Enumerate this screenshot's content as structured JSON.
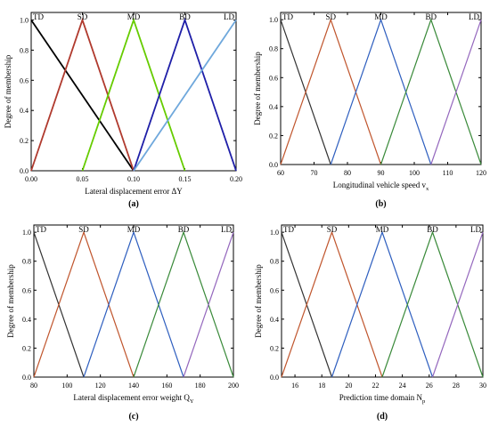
{
  "chart_data": [
    {
      "type": "line",
      "panel_label": "(a)",
      "xlabel": "Lateral displacement error ΔY",
      "ylabel": "Degree of membership",
      "xlim": [
        0,
        0.2
      ],
      "ylim": [
        0,
        1.05
      ],
      "xticks": [
        0.0,
        0.05,
        0.1,
        0.15,
        0.2
      ],
      "xtick_labels": [
        "0.00",
        "0.05",
        "0.10",
        "0.15",
        "0.20"
      ],
      "yticks": [
        0.0,
        0.2,
        0.4,
        0.6,
        0.8,
        1.0
      ],
      "ytick_labels": [
        "0.0",
        "0.2",
        "0.4",
        "0.6",
        "0.8",
        "1.0"
      ],
      "grid": false,
      "series": [
        {
          "name": "TD",
          "color": "#000000",
          "x": [
            0,
            0.1
          ],
          "y": [
            1,
            0
          ]
        },
        {
          "name": "SD",
          "color": "#b03a2e",
          "x": [
            0,
            0.05,
            0.1
          ],
          "y": [
            0,
            1,
            0
          ]
        },
        {
          "name": "MD",
          "color": "#66cc00",
          "x": [
            0.05,
            0.1,
            0.15
          ],
          "y": [
            0,
            1,
            0
          ]
        },
        {
          "name": "BD",
          "color": "#1f1fa8",
          "x": [
            0.1,
            0.15,
            0.2
          ],
          "y": [
            0,
            1,
            0
          ]
        },
        {
          "name": "LD",
          "color": "#6fa8dc",
          "x": [
            0.1,
            0.2
          ],
          "y": [
            0,
            1
          ]
        }
      ]
    },
    {
      "type": "line",
      "panel_label": "(b)",
      "xlabel": "Longitudinal vehicle speed  v",
      "xlabel_sub": "x",
      "ylabel": "Degree of membership",
      "xlim": [
        60,
        120
      ],
      "ylim": [
        0,
        1.05
      ],
      "xticks": [
        60,
        70,
        80,
        90,
        100,
        110,
        120
      ],
      "xtick_labels": [
        "60",
        "70",
        "80",
        "90",
        "100",
        "110",
        "120"
      ],
      "yticks": [
        0.0,
        0.2,
        0.4,
        0.6,
        0.8,
        1.0
      ],
      "ytick_labels": [
        "0.0",
        "0.2",
        "0.4",
        "0.6",
        "0.8",
        "1.0"
      ],
      "grid": false,
      "series": [
        {
          "name": "TD",
          "color": "#333333",
          "x": [
            60,
            75
          ],
          "y": [
            1,
            0
          ]
        },
        {
          "name": "SD",
          "color": "#c0562e",
          "x": [
            60,
            75,
            90
          ],
          "y": [
            0,
            1,
            0
          ]
        },
        {
          "name": "MD",
          "color": "#2f5fbf",
          "x": [
            75,
            90,
            105
          ],
          "y": [
            0,
            1,
            0
          ]
        },
        {
          "name": "BD",
          "color": "#3a8a3a",
          "x": [
            90,
            105,
            120
          ],
          "y": [
            0,
            1,
            0
          ]
        },
        {
          "name": "LD",
          "color": "#9467bd",
          "x": [
            105,
            120
          ],
          "y": [
            0,
            1
          ]
        }
      ]
    },
    {
      "type": "line",
      "panel_label": "(c)",
      "xlabel": "Lateral displacement error weight Q",
      "xlabel_sub": "Y",
      "ylabel": "Degree of membership",
      "xlim": [
        80,
        200
      ],
      "ylim": [
        0,
        1.05
      ],
      "xticks": [
        80,
        100,
        120,
        140,
        160,
        180,
        200
      ],
      "xtick_labels": [
        "80",
        "100",
        "120",
        "140",
        "160",
        "180",
        "200"
      ],
      "yticks": [
        0.0,
        0.2,
        0.4,
        0.6,
        0.8,
        1.0
      ],
      "ytick_labels": [
        "0.0",
        "0.2",
        "0.4",
        "0.6",
        "0.8",
        "1.0"
      ],
      "grid": false,
      "series": [
        {
          "name": "TD",
          "color": "#333333",
          "x": [
            80,
            110
          ],
          "y": [
            1,
            0
          ]
        },
        {
          "name": "SD",
          "color": "#c0562e",
          "x": [
            80,
            110,
            140
          ],
          "y": [
            0,
            1,
            0
          ]
        },
        {
          "name": "MD",
          "color": "#2f5fbf",
          "x": [
            110,
            140,
            170
          ],
          "y": [
            0,
            1,
            0
          ]
        },
        {
          "name": "BD",
          "color": "#3a8a3a",
          "x": [
            140,
            170,
            200
          ],
          "y": [
            0,
            1,
            0
          ]
        },
        {
          "name": "LD",
          "color": "#9467bd",
          "x": [
            170,
            200
          ],
          "y": [
            0,
            1
          ]
        }
      ]
    },
    {
      "type": "line",
      "panel_label": "(d)",
      "xlabel": "Prediction time domain N",
      "xlabel_sub": "p",
      "ylabel": "Degree of membership",
      "xlim": [
        15,
        30
      ],
      "ylim": [
        0,
        1.05
      ],
      "xticks": [
        16,
        18,
        20,
        22,
        24,
        26,
        28,
        30
      ],
      "xtick_labels": [
        "16",
        "18",
        "20",
        "22",
        "24",
        "26",
        "28",
        "30"
      ],
      "yticks": [
        0.0,
        0.2,
        0.4,
        0.6,
        0.8,
        1.0
      ],
      "ytick_labels": [
        "0.0",
        "0.2",
        "0.4",
        "0.6",
        "0.8",
        "1.0"
      ],
      "grid": false,
      "series": [
        {
          "name": "TD",
          "color": "#333333",
          "x": [
            15,
            18.75
          ],
          "y": [
            1,
            0
          ]
        },
        {
          "name": "SD",
          "color": "#c0562e",
          "x": [
            15,
            18.75,
            22.5
          ],
          "y": [
            0,
            1,
            0
          ]
        },
        {
          "name": "MD",
          "color": "#2f5fbf",
          "x": [
            18.75,
            22.5,
            26.25
          ],
          "y": [
            0,
            1,
            0
          ]
        },
        {
          "name": "BD",
          "color": "#3a8a3a",
          "x": [
            22.5,
            26.25,
            30
          ],
          "y": [
            0,
            1,
            0
          ]
        },
        {
          "name": "LD",
          "color": "#9467bd",
          "x": [
            26.25,
            30
          ],
          "y": [
            0,
            1
          ]
        }
      ]
    }
  ]
}
